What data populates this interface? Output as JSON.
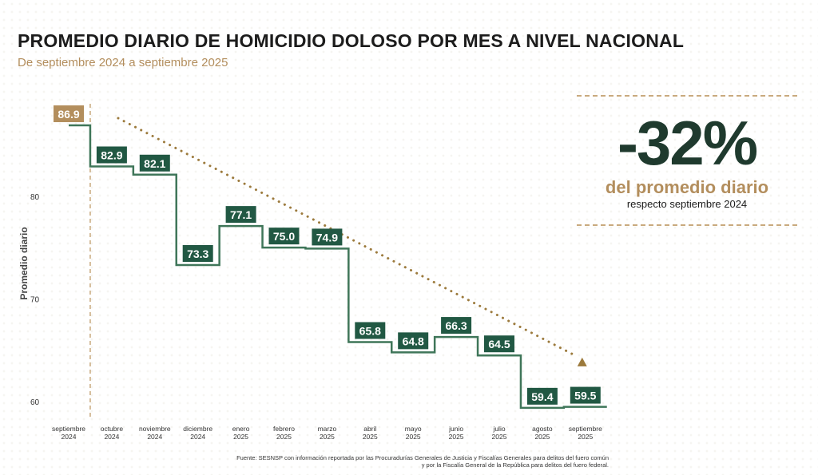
{
  "header": {
    "title": "PROMEDIO DIARIO DE HOMICIDIO DOLOSO POR MES A NIVEL NACIONAL",
    "subtitle": "De septiembre 2024 a septiembre 2025"
  },
  "kpi": {
    "value": "-32%",
    "label": "del promedio diario",
    "sublabel": "respecto septiembre 2024"
  },
  "source": {
    "line1": "Fuente: SESNSP con información reportada por las Procuradurías Generales de Justicia y Fiscalías Generales para delitos del fuero común",
    "line2": "y por la Fiscalía General de la República para delitos del fuero federal."
  },
  "colors": {
    "line": "#3f7659",
    "label_bg": "#215843",
    "highlight_bg": "#b38e5d",
    "trend": "#9c7a3c",
    "axis_text": "#333333"
  },
  "chart_data": {
    "type": "line",
    "step": true,
    "title": "PROMEDIO DIARIO DE HOMICIDIO DOLOSO POR MES A NIVEL NACIONAL",
    "ylabel": "Promedio diario",
    "xlabel": "",
    "ylim": [
      59,
      89
    ],
    "yticks": [
      60,
      70,
      80
    ],
    "categories": [
      [
        "septiembre",
        "2024"
      ],
      [
        "octubre",
        "2024"
      ],
      [
        "noviembre",
        "2024"
      ],
      [
        "diciembre",
        "2024"
      ],
      [
        "enero",
        "2025"
      ],
      [
        "febrero",
        "2025"
      ],
      [
        "marzo",
        "2025"
      ],
      [
        "abril",
        "2025"
      ],
      [
        "mayo",
        "2025"
      ],
      [
        "junio",
        "2025"
      ],
      [
        "julio",
        "2025"
      ],
      [
        "agosto",
        "2025"
      ],
      [
        "septiembre",
        "2025"
      ]
    ],
    "values": [
      86.9,
      82.9,
      82.1,
      73.3,
      77.1,
      75.0,
      74.9,
      65.8,
      64.8,
      66.3,
      64.5,
      59.4,
      59.5
    ],
    "labels": [
      "86.9",
      "82.9",
      "82.1",
      "73.3",
      "77.1",
      "75.0",
      "74.9",
      "65.8",
      "64.8",
      "66.3",
      "64.5",
      "59.4",
      "59.5"
    ],
    "highlight_index": 0,
    "trend": {
      "from_value": 87.6,
      "to_value": 64.5,
      "style": "dotted-arrow"
    }
  }
}
